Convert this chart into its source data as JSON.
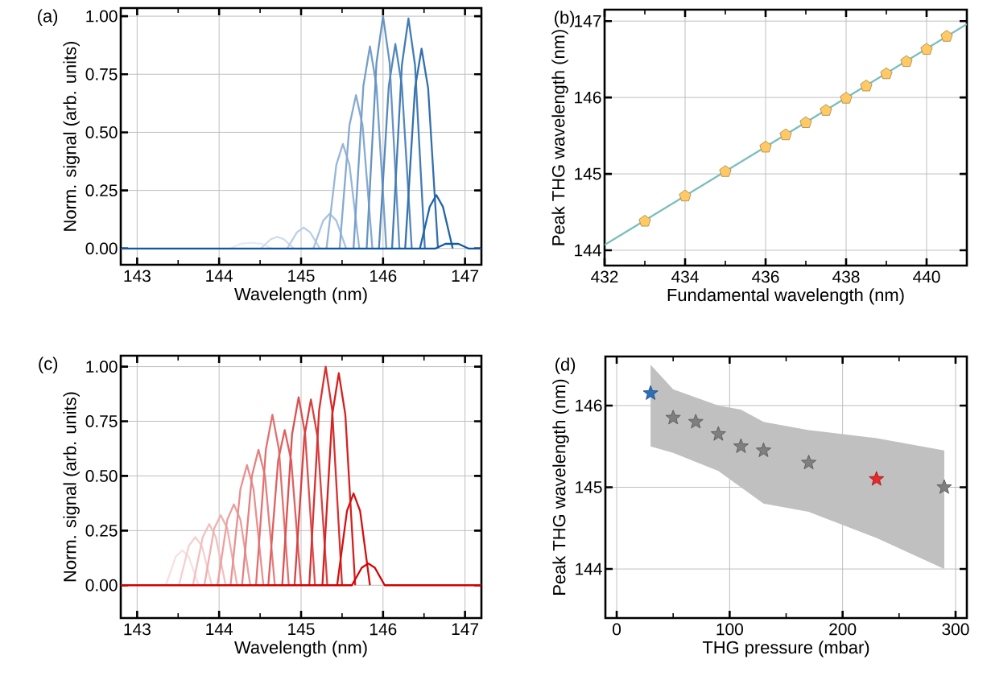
{
  "chart_data": [
    {
      "type": "line",
      "title": "(a)",
      "xlabel": "Wavelength (nm)",
      "ylabel": "Norm. signal (arb. units)",
      "xlim": [
        142.8,
        147.2
      ],
      "ylim": [
        -0.07,
        1.035
      ],
      "xticks": [
        143,
        {
          "value": 143.5,
          "label": null
        },
        144,
        {
          "value": 144.5,
          "label": null
        },
        145,
        {
          "value": 145.5,
          "label": null
        },
        146,
        {
          "value": 146.5,
          "label": null
        },
        147
      ],
      "yticks": [
        {
          "value": 0,
          "label": "0.00"
        },
        {
          "value": 0.25,
          "label": "0.25"
        },
        {
          "value": 0.5,
          "label": "0.50"
        },
        {
          "value": 0.75,
          "label": "0.75"
        },
        {
          "value": 1,
          "label": "1.00"
        }
      ],
      "grid": true,
      "series": [
        {
          "color": "#e3ebf6",
          "x": [
            144.14,
            144.26,
            144.39,
            144.52,
            144.64
          ],
          "values": [
            0,
            0.02,
            0.025,
            0.02,
            0
          ]
        },
        {
          "color": "#cfdcee",
          "x": [
            144.51,
            144.63,
            144.71,
            144.79,
            144.91
          ],
          "values": [
            0,
            0.04,
            0.05,
            0.04,
            0
          ]
        },
        {
          "color": "#bccfe7",
          "x": [
            144.83,
            144.95,
            145.03,
            145.11,
            145.23
          ],
          "values": [
            0,
            0.07,
            0.09,
            0.07,
            0
          ]
        },
        {
          "color": "#a9c2df",
          "x": [
            145.15,
            145.27,
            145.35,
            145.43,
            145.55
          ],
          "values": [
            0,
            0.12,
            0.15,
            0.12,
            0
          ]
        },
        {
          "color": "#97b6d8",
          "x": [
            145.31,
            145.43,
            145.51,
            145.59,
            145.71
          ],
          "values": [
            0,
            0.36,
            0.45,
            0.36,
            0
          ]
        },
        {
          "color": "#86aad1",
          "x": [
            145.47,
            145.59,
            145.67,
            145.75,
            145.87
          ],
          "values": [
            0,
            0.53,
            0.66,
            0.53,
            0
          ]
        },
        {
          "color": "#769fca",
          "x": [
            145.64,
            145.76,
            145.84,
            145.92,
            146.04
          ],
          "values": [
            0,
            0.7,
            0.87,
            0.7,
            0
          ]
        },
        {
          "color": "#6694c3",
          "x": [
            145.8,
            145.92,
            146.0,
            146.08,
            146.2
          ],
          "values": [
            0,
            0.8,
            1.0,
            0.8,
            0
          ]
        },
        {
          "color": "#5488bc",
          "x": [
            145.95,
            146.07,
            146.15,
            146.23,
            146.35
          ],
          "values": [
            0,
            0.7,
            0.88,
            0.7,
            0
          ]
        },
        {
          "color": "#437cb5",
          "x": [
            146.11,
            146.23,
            146.31,
            146.39,
            146.51
          ],
          "values": [
            0,
            0.79,
            0.99,
            0.79,
            0
          ]
        },
        {
          "color": "#3370ae",
          "x": [
            146.27,
            146.39,
            146.47,
            146.55,
            146.67
          ],
          "values": [
            0,
            0.69,
            0.86,
            0.69,
            0
          ]
        },
        {
          "color": "#2264a7",
          "x": [
            146.45,
            146.57,
            146.65,
            146.73,
            146.85
          ],
          "values": [
            0,
            0.18,
            0.23,
            0.18,
            0
          ]
        },
        {
          "color": "#1158a0",
          "x": [
            142.8,
            146.64,
            146.76,
            146.84,
            146.92,
            147.04,
            147.2
          ],
          "values": [
            0,
            0,
            0.02,
            0.02,
            0.02,
            0,
            0
          ]
        }
      ]
    },
    {
      "type": "scatter",
      "title": "(b)",
      "xlabel": "Fundamental wavelength (nm)",
      "ylabel": "Peak THG wavelength (nm)",
      "xlim": [
        432,
        441
      ],
      "ylim": [
        143.8,
        147.15
      ],
      "xticks": [
        432,
        {
          "value": 433,
          "label": null
        },
        434,
        {
          "value": 435,
          "label": null
        },
        436,
        {
          "value": 437,
          "label": null
        },
        438,
        {
          "value": 439,
          "label": null
        },
        440
      ],
      "yticks": [
        144,
        145,
        146,
        147
      ],
      "grid": true,
      "series": [
        {
          "type": "line",
          "color": "#79bfbb",
          "x": [
            432,
            441
          ],
          "values": [
            144.07,
            146.96
          ]
        },
        {
          "type": "scatter",
          "color": "#ffc966",
          "x": [
            433,
            434,
            435,
            436,
            436.5,
            437,
            437.5,
            438,
            438.5,
            439,
            439.5,
            440,
            440.5
          ],
          "values": [
            144.38,
            144.71,
            145.03,
            145.35,
            145.51,
            145.67,
            145.83,
            145.99,
            146.15,
            146.31,
            146.47,
            146.63,
            146.8
          ]
        }
      ]
    },
    {
      "type": "line",
      "title": "(c)",
      "xlabel": "Wavelength (nm)",
      "ylabel": "Norm. signal (arb. units)",
      "xlim": [
        142.8,
        147.2
      ],
      "ylim": [
        -0.15,
        1.05
      ],
      "xticks": [
        143,
        {
          "value": 143.5,
          "label": null
        },
        144,
        {
          "value": 144.5,
          "label": null
        },
        145,
        {
          "value": 145.5,
          "label": null
        },
        146,
        {
          "value": 146.5,
          "label": null
        },
        147
      ],
      "yticks": [
        {
          "value": 0,
          "label": "0.00"
        },
        {
          "value": 0.25,
          "label": "0.25"
        },
        {
          "value": 0.5,
          "label": "0.50"
        },
        {
          "value": 0.75,
          "label": "0.75"
        },
        {
          "value": 1,
          "label": "1.00"
        }
      ],
      "grid": true,
      "series": [
        {
          "color": "#f7e1e1",
          "x": [
            143.35,
            143.47,
            143.55,
            143.63,
            143.75
          ],
          "values": [
            0,
            0.13,
            0.16,
            0.13,
            0
          ]
        },
        {
          "color": "#f4d0d0",
          "x": [
            143.51,
            143.63,
            143.71,
            143.79,
            143.91
          ],
          "values": [
            0,
            0.18,
            0.22,
            0.18,
            0
          ]
        },
        {
          "color": "#f1c0c0",
          "x": [
            143.68,
            143.8,
            143.88,
            143.96,
            144.08
          ],
          "values": [
            0,
            0.22,
            0.28,
            0.22,
            0
          ]
        },
        {
          "color": "#eeb0b0",
          "x": [
            143.82,
            143.94,
            144.02,
            144.1,
            144.22
          ],
          "values": [
            0,
            0.26,
            0.32,
            0.26,
            0
          ]
        },
        {
          "color": "#eba0a0",
          "x": [
            143.98,
            144.1,
            144.18,
            144.26,
            144.38
          ],
          "values": [
            0,
            0.3,
            0.37,
            0.3,
            0
          ]
        },
        {
          "color": "#e89090",
          "x": [
            144.14,
            144.26,
            144.34,
            144.42,
            144.54
          ],
          "values": [
            0,
            0.44,
            0.55,
            0.44,
            0
          ]
        },
        {
          "color": "#e58080",
          "x": [
            144.28,
            144.4,
            144.48,
            144.56,
            144.68
          ],
          "values": [
            0,
            0.5,
            0.62,
            0.5,
            0
          ]
        },
        {
          "color": "#e27070",
          "x": [
            144.45,
            144.57,
            144.65,
            144.73,
            144.85
          ],
          "values": [
            0,
            0.62,
            0.78,
            0.62,
            0
          ]
        },
        {
          "color": "#df6060",
          "x": [
            144.6,
            144.72,
            144.8,
            144.88,
            145.0
          ],
          "values": [
            0,
            0.57,
            0.71,
            0.57,
            0
          ]
        },
        {
          "color": "#dc5050",
          "x": [
            144.77,
            144.89,
            144.97,
            145.05,
            145.17
          ],
          "values": [
            0,
            0.69,
            0.86,
            0.69,
            0
          ]
        },
        {
          "color": "#d94040",
          "x": [
            144.92,
            145.04,
            145.12,
            145.2,
            145.32
          ],
          "values": [
            0,
            0.68,
            0.85,
            0.68,
            0
          ]
        },
        {
          "color": "#d83030",
          "x": [
            145.1,
            145.22,
            145.3,
            145.38,
            145.5
          ],
          "values": [
            0,
            0.8,
            1.0,
            0.8,
            0
          ]
        },
        {
          "color": "#d62020",
          "x": [
            145.26,
            145.38,
            145.46,
            145.54,
            145.66
          ],
          "values": [
            0,
            0.78,
            0.97,
            0.78,
            0
          ]
        },
        {
          "color": "#d51010",
          "x": [
            145.44,
            145.56,
            145.64,
            145.72,
            145.84
          ],
          "values": [
            0,
            0.34,
            0.42,
            0.34,
            0
          ]
        },
        {
          "color": "#d40000",
          "x": [
            142.8,
            145.62,
            145.74,
            145.82,
            145.9,
            146.02,
            147.2
          ],
          "values": [
            0,
            0,
            0.08,
            0.1,
            0.08,
            0,
            0
          ]
        }
      ]
    },
    {
      "type": "scatter",
      "title": "(d)",
      "xlabel": "THG pressure (mbar)",
      "ylabel": "Peak THG wavelength (nm)",
      "xlim": [
        -10,
        310
      ],
      "ylim": [
        143.4,
        146.6
      ],
      "xticks": [
        0,
        {
          "value": 50,
          "label": null
        },
        100,
        {
          "value": 150,
          "label": null
        },
        200,
        {
          "value": 250,
          "label": null
        },
        300
      ],
      "yticks": [
        144,
        145,
        146
      ],
      "grid": true,
      "series": [
        {
          "type": "scatter",
          "color": "#c0c0c0",
          "marker": "star",
          "x": [
            30,
            50,
            70,
            90,
            110,
            130,
            170,
            230,
            290
          ],
          "values": [
            146.15,
            145.85,
            145.8,
            145.65,
            145.5,
            145.45,
            145.3,
            145.1,
            145.0
          ],
          "colors": [
            "#2a6fb8",
            "#7f7f7f",
            "#7f7f7f",
            "#7f7f7f",
            "#7f7f7f",
            "#7f7f7f",
            "#7f7f7f",
            "#e8282a",
            "#7f7f7f"
          ],
          "upper": [
            146.5,
            146.2,
            146.1,
            146.0,
            145.95,
            145.8,
            145.7,
            145.6,
            145.45
          ],
          "lower": [
            145.5,
            145.42,
            145.31,
            145.2,
            145.0,
            144.8,
            144.7,
            144.38,
            144.0
          ]
        }
      ]
    }
  ]
}
